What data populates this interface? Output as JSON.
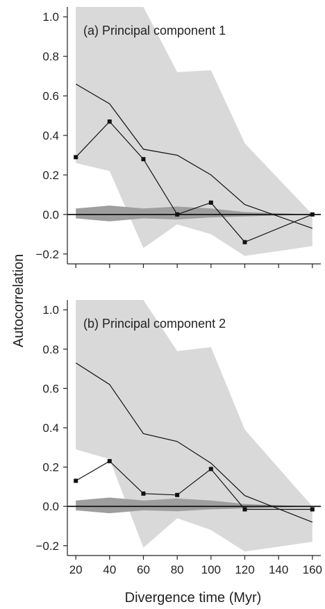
{
  "figure": {
    "ylabel": "Autocorrelation",
    "xlabel": "Divergence time (Myr)"
  },
  "chart_data": [
    {
      "type": "line",
      "title": "(a) Principal component 1",
      "xlabel": "Divergence time (Myr)",
      "ylabel": "Autocorrelation",
      "xlim": [
        15,
        165
      ],
      "ylim": [
        -0.25,
        1.05
      ],
      "xticks": [
        20,
        40,
        60,
        80,
        100,
        120,
        140,
        160
      ],
      "yticks": [
        -0.2,
        0.0,
        0.2,
        0.4,
        0.6,
        0.8,
        1.0
      ],
      "ytick_labels": [
        "−0.2",
        "0.0",
        "0.2",
        "0.4",
        "0.6",
        "0.8",
        "1.0"
      ],
      "x": [
        20,
        40,
        60,
        80,
        100,
        120,
        160
      ],
      "series": [
        {
          "values": [
            0.29,
            0.47,
            0.28,
            0.0,
            0.06,
            -0.14,
            0.0
          ],
          "style": "line-markers"
        },
        {
          "values": [
            0.66,
            0.56,
            0.33,
            0.3,
            0.2,
            0.05,
            -0.07
          ],
          "style": "line"
        }
      ],
      "bands": [
        {
          "kind": "light",
          "x": [
            20,
            40,
            60,
            80,
            100,
            120,
            160
          ],
          "upper": [
            1.05,
            1.05,
            1.05,
            0.72,
            0.73,
            0.36,
            0.0
          ],
          "lower": [
            0.26,
            0.22,
            -0.17,
            -0.05,
            -0.1,
            -0.21,
            -0.16
          ]
        },
        {
          "kind": "dark",
          "x": [
            20,
            40,
            60,
            80,
            100,
            120,
            160
          ],
          "upper": [
            0.03,
            0.045,
            0.03,
            0.04,
            0.03,
            0.012,
            0.0
          ],
          "lower": [
            -0.02,
            -0.035,
            -0.02,
            -0.025,
            -0.015,
            -0.01,
            0.0
          ]
        }
      ],
      "reference_line": 0,
      "grid": false
    },
    {
      "type": "line",
      "title": "(b) Principal component 2",
      "xlabel": "Divergence time (Myr)",
      "ylabel": "Autocorrelation",
      "xlim": [
        15,
        165
      ],
      "ylim": [
        -0.25,
        1.05
      ],
      "xticks": [
        20,
        40,
        60,
        80,
        100,
        120,
        140,
        160
      ],
      "xtick_labels": [
        "20",
        "40",
        "60",
        "80",
        "100",
        "120",
        "140",
        "160"
      ],
      "yticks": [
        -0.2,
        0.0,
        0.2,
        0.4,
        0.6,
        0.8,
        1.0
      ],
      "ytick_labels": [
        "−0.2",
        "0.0",
        "0.2",
        "0.4",
        "0.6",
        "0.8",
        "1.0"
      ],
      "x": [
        20,
        40,
        60,
        80,
        100,
        120,
        160
      ],
      "series": [
        {
          "values": [
            0.13,
            0.23,
            0.065,
            0.058,
            0.19,
            -0.015,
            -0.015
          ],
          "style": "line-markers"
        },
        {
          "values": [
            0.73,
            0.62,
            0.37,
            0.33,
            0.22,
            0.055,
            -0.08
          ],
          "style": "line"
        }
      ],
      "bands": [
        {
          "kind": "light",
          "x": [
            20,
            40,
            60,
            80,
            100,
            120,
            160
          ],
          "upper": [
            1.05,
            1.05,
            1.05,
            0.79,
            0.81,
            0.39,
            0.0
          ],
          "lower": [
            0.29,
            0.24,
            -0.21,
            -0.06,
            -0.12,
            -0.23,
            -0.18
          ]
        },
        {
          "kind": "dark",
          "x": [
            20,
            40,
            60,
            80,
            100,
            120,
            160
          ],
          "upper": [
            0.03,
            0.045,
            0.03,
            0.04,
            0.03,
            0.012,
            0.0
          ],
          "lower": [
            -0.02,
            -0.035,
            -0.02,
            -0.025,
            -0.015,
            -0.01,
            0.0
          ]
        }
      ],
      "reference_line": 0,
      "grid": false
    }
  ],
  "colors": {
    "light_band": "#d9d9d9",
    "dark_band": "#9e9e9e",
    "line": "#111111",
    "axis": "#222222"
  }
}
